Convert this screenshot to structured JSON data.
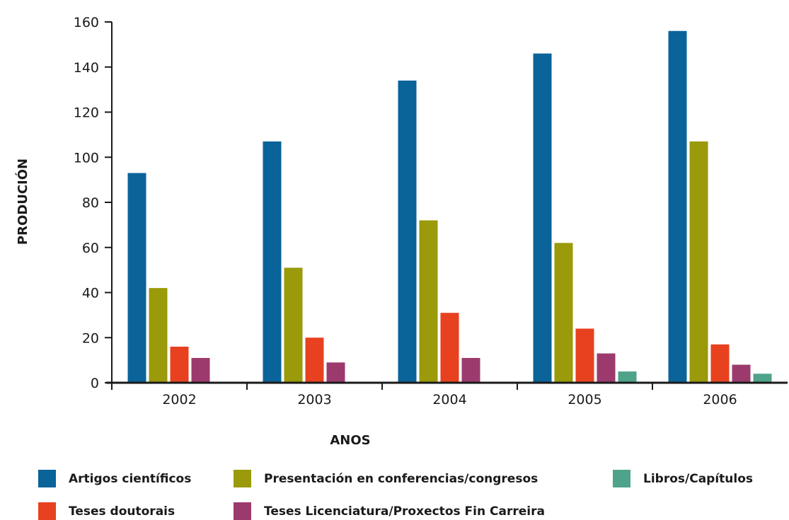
{
  "chart_data": {
    "type": "bar",
    "categories": [
      "2002",
      "2003",
      "2004",
      "2005",
      "2006"
    ],
    "xlabel": "ANOS",
    "ylabel": "PRODUCIÓN",
    "ylim": [
      0,
      160
    ],
    "yticks": [
      0,
      20,
      40,
      60,
      80,
      100,
      120,
      140,
      160
    ],
    "grid": false,
    "legend_position": "bottom",
    "series": [
      {
        "name": "Artigos científicos",
        "color": "#0a6399",
        "values": [
          93,
          107,
          134,
          146,
          156
        ]
      },
      {
        "name": "Presentación en conferencias/congresos",
        "color": "#9a9a0a",
        "values": [
          42,
          51,
          72,
          62,
          107
        ]
      },
      {
        "name": "Teses doutorais",
        "color": "#e8411f",
        "values": [
          16,
          20,
          31,
          24,
          17
        ]
      },
      {
        "name": "Teses Licenciatura/Proxectos Fin Carreira",
        "color": "#9c3a6e",
        "values": [
          11,
          9,
          11,
          13,
          8
        ]
      },
      {
        "name": "Libros/Capítulos",
        "color": "#4fa38a",
        "values": [
          null,
          null,
          null,
          5,
          4
        ]
      }
    ]
  }
}
